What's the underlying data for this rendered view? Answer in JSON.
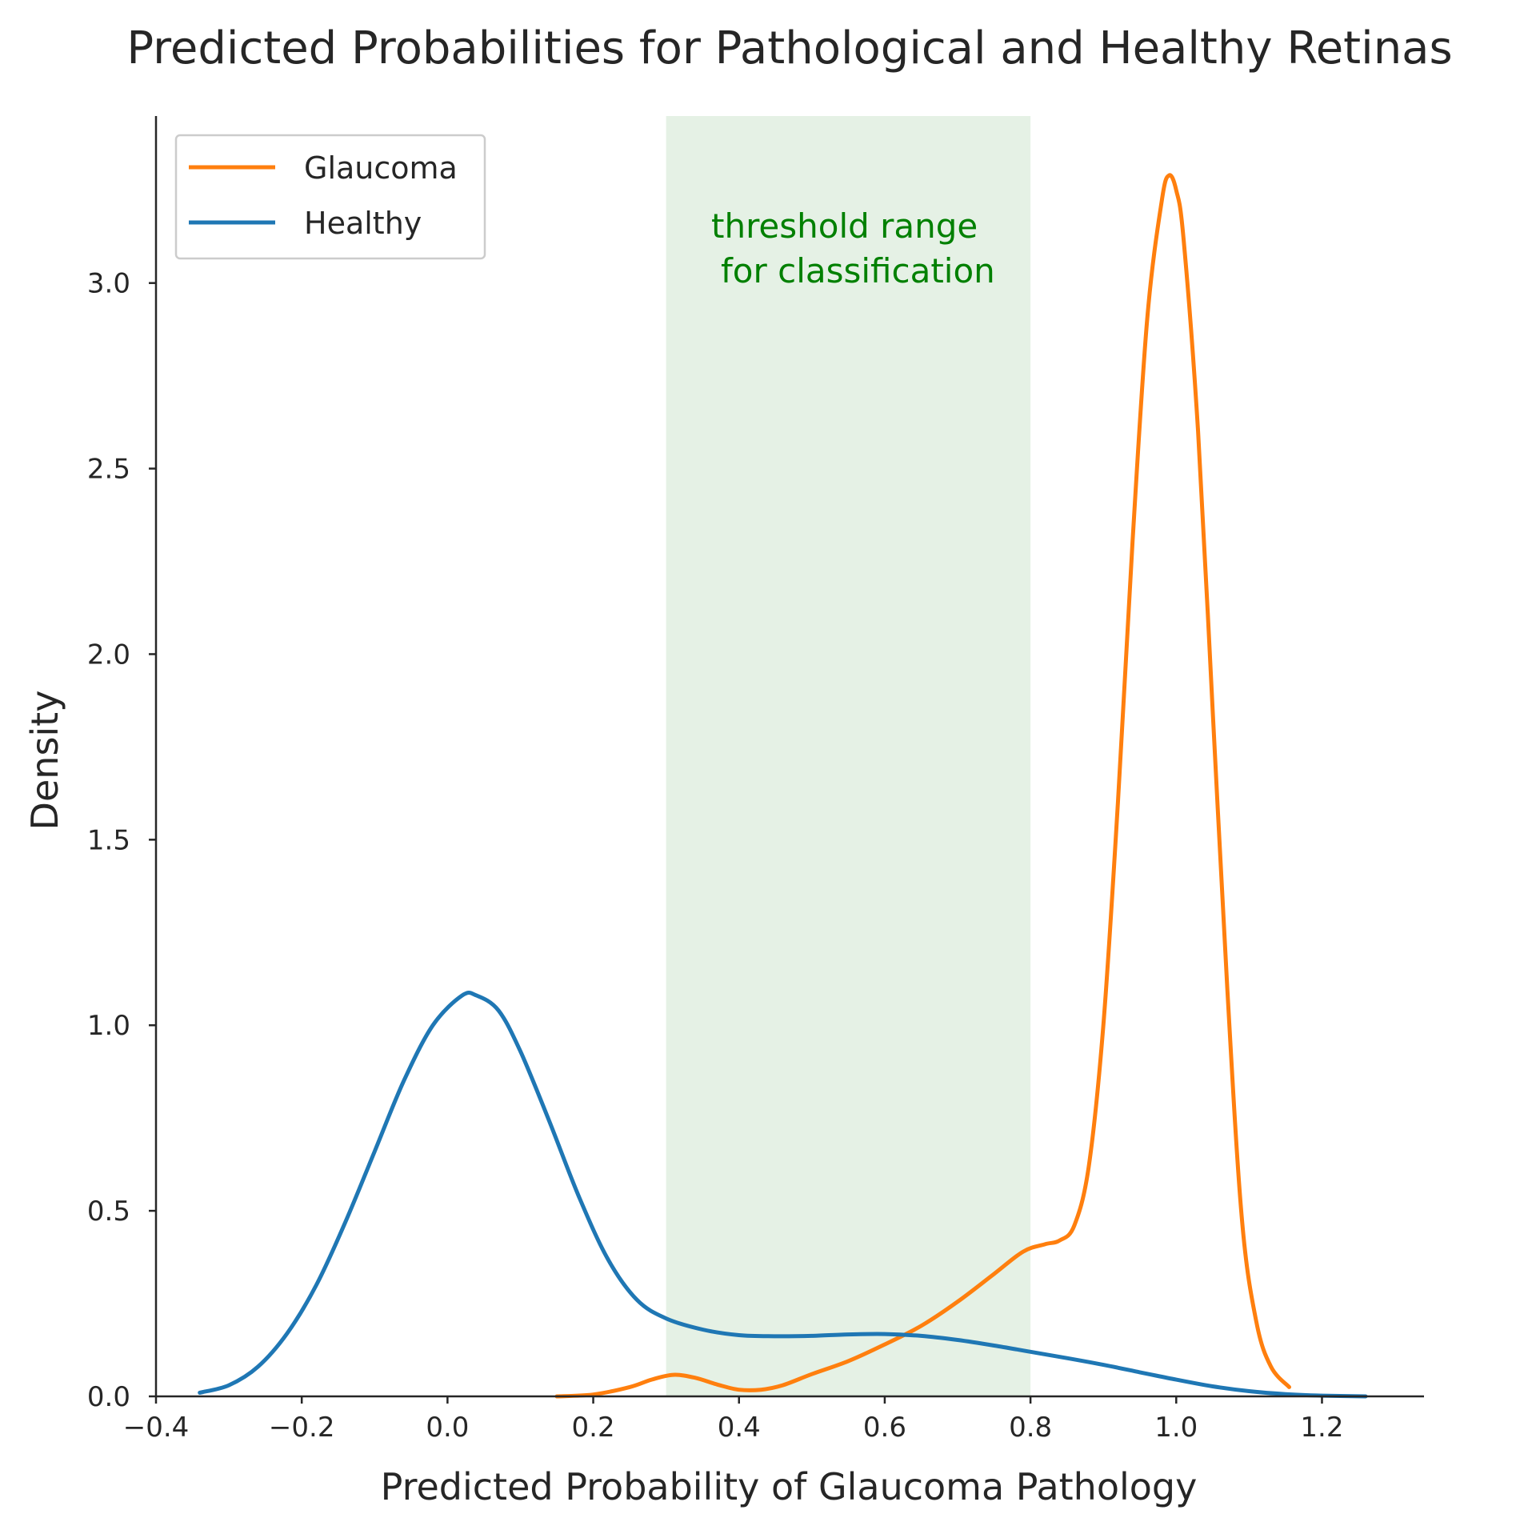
{
  "chart_data": {
    "type": "line",
    "title": "Predicted Probabilities for Pathological and Healthy Retinas",
    "xlabel": "Predicted Probability of Glaucoma Pathology",
    "ylabel": "Density",
    "xlim": [
      -0.4,
      1.34
    ],
    "ylim": [
      0.0,
      3.45
    ],
    "xticks": [
      -0.4,
      -0.2,
      0.0,
      0.2,
      0.4,
      0.6,
      0.8,
      1.0,
      1.2
    ],
    "xtick_labels": [
      "−0.4",
      "−0.2",
      "0.0",
      "0.2",
      "0.4",
      "0.6",
      "0.8",
      "1.0",
      "1.2"
    ],
    "yticks": [
      0.0,
      0.5,
      1.0,
      1.5,
      2.0,
      2.5,
      3.0
    ],
    "ytick_labels": [
      "0.0",
      "0.5",
      "1.0",
      "1.5",
      "2.0",
      "2.5",
      "3.0"
    ],
    "grid": false,
    "legend_position": "top-left",
    "span": {
      "x_start": 0.3,
      "x_end": 0.8,
      "color": "#e5f1e5",
      "label_lines": [
        "threshold range",
        "for classification"
      ]
    },
    "series": [
      {
        "name": "Glaucoma",
        "color": "#ff7f0e",
        "points": [
          [
            0.15,
            0.0
          ],
          [
            0.2,
            0.005
          ],
          [
            0.25,
            0.025
          ],
          [
            0.28,
            0.045
          ],
          [
            0.31,
            0.058
          ],
          [
            0.34,
            0.05
          ],
          [
            0.37,
            0.032
          ],
          [
            0.4,
            0.018
          ],
          [
            0.43,
            0.018
          ],
          [
            0.46,
            0.03
          ],
          [
            0.5,
            0.06
          ],
          [
            0.55,
            0.095
          ],
          [
            0.6,
            0.14
          ],
          [
            0.65,
            0.19
          ],
          [
            0.7,
            0.255
          ],
          [
            0.75,
            0.33
          ],
          [
            0.79,
            0.39
          ],
          [
            0.82,
            0.41
          ],
          [
            0.84,
            0.42
          ],
          [
            0.86,
            0.46
          ],
          [
            0.88,
            0.62
          ],
          [
            0.9,
            1.0
          ],
          [
            0.92,
            1.6
          ],
          [
            0.94,
            2.3
          ],
          [
            0.96,
            2.9
          ],
          [
            0.98,
            3.22
          ],
          [
            0.99,
            3.29
          ],
          [
            1.0,
            3.25
          ],
          [
            1.01,
            3.12
          ],
          [
            1.03,
            2.6
          ],
          [
            1.05,
            1.85
          ],
          [
            1.07,
            1.1
          ],
          [
            1.09,
            0.48
          ],
          [
            1.11,
            0.2
          ],
          [
            1.13,
            0.08
          ],
          [
            1.155,
            0.025
          ]
        ]
      },
      {
        "name": "Healthy",
        "color": "#1f77b4",
        "points": [
          [
            -0.34,
            0.01
          ],
          [
            -0.3,
            0.03
          ],
          [
            -0.26,
            0.08
          ],
          [
            -0.22,
            0.17
          ],
          [
            -0.18,
            0.3
          ],
          [
            -0.14,
            0.47
          ],
          [
            -0.1,
            0.66
          ],
          [
            -0.06,
            0.85
          ],
          [
            -0.02,
            1.0
          ],
          [
            0.02,
            1.08
          ],
          [
            0.04,
            1.08
          ],
          [
            0.07,
            1.04
          ],
          [
            0.1,
            0.93
          ],
          [
            0.14,
            0.74
          ],
          [
            0.18,
            0.54
          ],
          [
            0.22,
            0.37
          ],
          [
            0.26,
            0.26
          ],
          [
            0.3,
            0.21
          ],
          [
            0.35,
            0.18
          ],
          [
            0.4,
            0.165
          ],
          [
            0.45,
            0.162
          ],
          [
            0.5,
            0.163
          ],
          [
            0.55,
            0.167
          ],
          [
            0.6,
            0.168
          ],
          [
            0.65,
            0.163
          ],
          [
            0.7,
            0.152
          ],
          [
            0.75,
            0.137
          ],
          [
            0.8,
            0.12
          ],
          [
            0.85,
            0.103
          ],
          [
            0.9,
            0.085
          ],
          [
            0.95,
            0.065
          ],
          [
            1.0,
            0.045
          ],
          [
            1.05,
            0.027
          ],
          [
            1.1,
            0.014
          ],
          [
            1.15,
            0.006
          ],
          [
            1.2,
            0.002
          ],
          [
            1.26,
            0.0
          ]
        ]
      }
    ]
  }
}
